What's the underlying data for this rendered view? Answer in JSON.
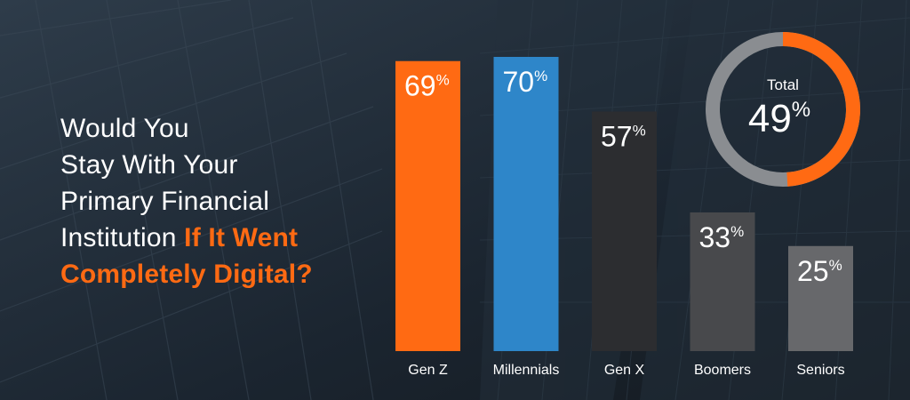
{
  "headline": {
    "line1": "Would You",
    "line2": "Stay With Your",
    "line3": "Primary Financial",
    "line4_plain": "Institution ",
    "line4_highlight": "If It Went",
    "line5_highlight": "Completely Digital?"
  },
  "colors": {
    "highlight": "#ff6a13",
    "text": "#ffffff",
    "ring_track": "#8a8d91"
  },
  "chart_data": [
    {
      "type": "bar",
      "categories": [
        "Gen Z",
        "Millennials",
        "Gen X",
        "Boomers",
        "Seniors"
      ],
      "values": [
        69,
        70,
        57,
        33,
        25
      ],
      "unit": "%",
      "colors": [
        "#ff6a13",
        "#2e86c9",
        "#2c2d30",
        "#48494c",
        "#67686b"
      ],
      "ylim": [
        0,
        70
      ],
      "grid": false
    },
    {
      "type": "pie",
      "style": "donut",
      "label": "Total",
      "value": 49,
      "unit": "%",
      "colors": [
        "#ff6a13",
        "#8a8d91"
      ]
    }
  ]
}
